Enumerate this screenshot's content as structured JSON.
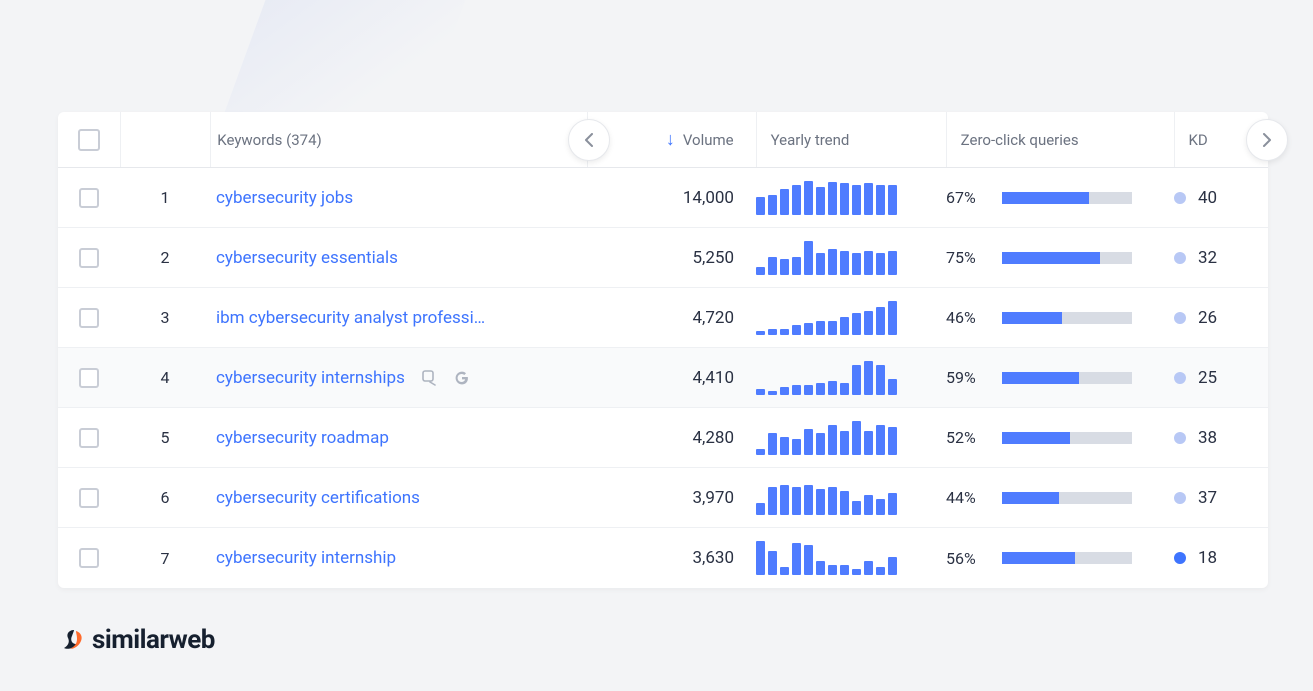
{
  "brand": {
    "name": "similarweb"
  },
  "colors": {
    "link": "#3e74fe",
    "bar": "#4f7cff",
    "bar_track": "#d8dce4",
    "text": "#2a3143",
    "muted": "#6b7280",
    "border": "#e6e8ec",
    "kd_light": "#b8c8f5",
    "kd_strong": "#3e74fe",
    "row_hover": "#f9fafb"
  },
  "table": {
    "header": {
      "keywords_label": "Keywords (374)",
      "volume_label": "Volume",
      "trend_label": "Yearly trend",
      "zero_label": "Zero-click queries",
      "kd_label": "KD",
      "sort_column": "volume",
      "sort_dir": "desc"
    },
    "rows": [
      {
        "n": "1",
        "keyword": "cybersecurity jobs",
        "volume": "14,000",
        "trend": [
          18,
          20,
          26,
          30,
          34,
          28,
          33,
          32,
          30,
          32,
          30,
          30
        ],
        "zero_pct": 67,
        "zero_label": "67%",
        "kd": "40",
        "kd_strong": false,
        "hover": false,
        "show_icons": false
      },
      {
        "n": "2",
        "keyword": "cybersecurity essentials",
        "volume": "5,250",
        "trend": [
          8,
          18,
          16,
          18,
          34,
          22,
          26,
          24,
          22,
          24,
          22,
          24
        ],
        "zero_pct": 75,
        "zero_label": "75%",
        "kd": "32",
        "kd_strong": false,
        "hover": false,
        "show_icons": false
      },
      {
        "n": "3",
        "keyword": "ibm cybersecurity analyst professi…",
        "volume": "4,720",
        "trend": [
          4,
          6,
          6,
          10,
          12,
          14,
          14,
          18,
          22,
          24,
          28,
          34
        ],
        "zero_pct": 46,
        "zero_label": "46%",
        "kd": "26",
        "kd_strong": false,
        "hover": false,
        "show_icons": false
      },
      {
        "n": "4",
        "keyword": "cybersecurity internships",
        "volume": "4,410",
        "trend": [
          6,
          4,
          8,
          10,
          10,
          12,
          14,
          12,
          30,
          34,
          30,
          16
        ],
        "zero_pct": 59,
        "zero_label": "59%",
        "kd": "25",
        "kd_strong": false,
        "hover": true,
        "show_icons": true
      },
      {
        "n": "5",
        "keyword": "cybersecurity roadmap",
        "volume": "4,280",
        "trend": [
          6,
          22,
          18,
          16,
          26,
          22,
          30,
          24,
          34,
          24,
          30,
          28
        ],
        "zero_pct": 52,
        "zero_label": "52%",
        "kd": "38",
        "kd_strong": false,
        "hover": false,
        "show_icons": false
      },
      {
        "n": "6",
        "keyword": "cybersecurity certifications",
        "volume": "3,970",
        "trend": [
          12,
          28,
          30,
          28,
          30,
          26,
          28,
          24,
          14,
          20,
          16,
          22
        ],
        "zero_pct": 44,
        "zero_label": "44%",
        "kd": "37",
        "kd_strong": false,
        "hover": false,
        "show_icons": false
      },
      {
        "n": "7",
        "keyword": "cybersecurity internship",
        "volume": "3,630",
        "trend": [
          34,
          24,
          8,
          32,
          30,
          14,
          10,
          10,
          6,
          14,
          8,
          18
        ],
        "zero_pct": 56,
        "zero_label": "56%",
        "kd": "18",
        "kd_strong": true,
        "hover": false,
        "show_icons": false
      }
    ]
  }
}
